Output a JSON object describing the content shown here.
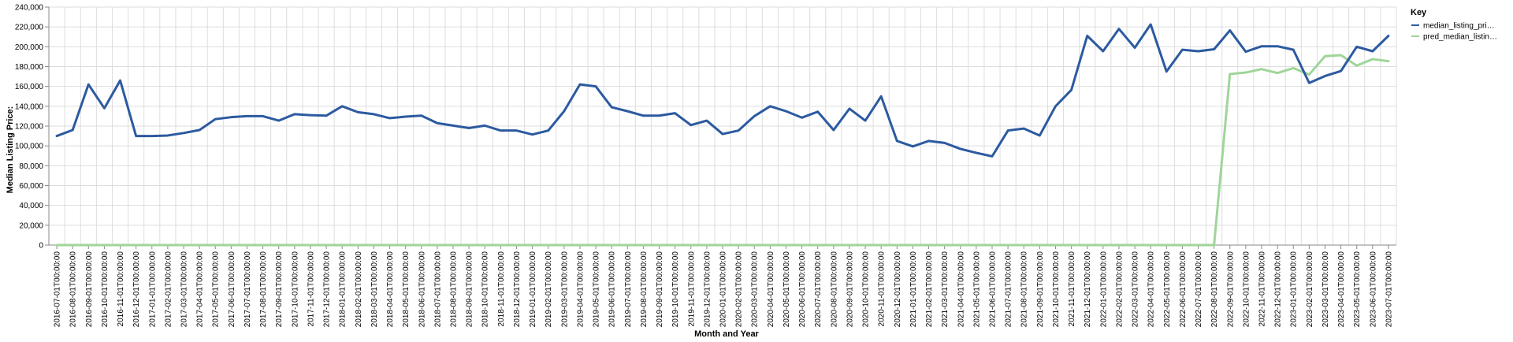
{
  "chart_data": {
    "type": "line",
    "xlabel": "Month and Year",
    "ylabel": "Median Listing Price:",
    "ylim": [
      0,
      240000
    ],
    "yticks": [
      "0",
      "20,000",
      "40,000",
      "60,000",
      "80,000",
      "100,000",
      "120,000",
      "140,000",
      "160,000",
      "180,000",
      "200,000",
      "220,000",
      "240,000"
    ],
    "grid": true,
    "legend": {
      "title": "Key",
      "placement": "right",
      "entries": [
        "median_listing_pri…",
        "pred_median_listin…"
      ]
    },
    "x": [
      "2016-07-01T00:00:00",
      "2016-08-01T00:00:00",
      "2016-09-01T00:00:00",
      "2016-10-01T00:00:00",
      "2016-11-01T00:00:00",
      "2016-12-01T00:00:00",
      "2017-01-01T00:00:00",
      "2017-02-01T00:00:00",
      "2017-03-01T00:00:00",
      "2017-04-01T00:00:00",
      "2017-05-01T00:00:00",
      "2017-06-01T00:00:00",
      "2017-07-01T00:00:00",
      "2017-08-01T00:00:00",
      "2017-09-01T00:00:00",
      "2017-10-01T00:00:00",
      "2017-11-01T00:00:00",
      "2017-12-01T00:00:00",
      "2018-01-01T00:00:00",
      "2018-02-01T00:00:00",
      "2018-03-01T00:00:00",
      "2018-04-01T00:00:00",
      "2018-05-01T00:00:00",
      "2018-06-01T00:00:00",
      "2018-07-01T00:00:00",
      "2018-08-01T00:00:00",
      "2018-09-01T00:00:00",
      "2018-10-01T00:00:00",
      "2018-11-01T00:00:00",
      "2018-12-01T00:00:00",
      "2019-01-01T00:00:00",
      "2019-02-01T00:00:00",
      "2019-03-01T00:00:00",
      "2019-04-01T00:00:00",
      "2019-05-01T00:00:00",
      "2019-06-01T00:00:00",
      "2019-07-01T00:00:00",
      "2019-08-01T00:00:00",
      "2019-09-01T00:00:00",
      "2019-10-01T00:00:00",
      "2019-11-01T00:00:00",
      "2019-12-01T00:00:00",
      "2020-01-01T00:00:00",
      "2020-02-01T00:00:00",
      "2020-03-01T00:00:00",
      "2020-04-01T00:00:00",
      "2020-05-01T00:00:00",
      "2020-06-01T00:00:00",
      "2020-07-01T00:00:00",
      "2020-08-01T00:00:00",
      "2020-09-01T00:00:00",
      "2020-10-01T00:00:00",
      "2020-11-01T00:00:00",
      "2020-12-01T00:00:00",
      "2021-01-01T00:00:00",
      "2021-02-01T00:00:00",
      "2021-03-01T00:00:00",
      "2021-04-01T00:00:00",
      "2021-05-01T00:00:00",
      "2021-06-01T00:00:00",
      "2021-07-01T00:00:00",
      "2021-08-01T00:00:00",
      "2021-09-01T00:00:00",
      "2021-10-01T00:00:00",
      "2021-11-01T00:00:00",
      "2021-12-01T00:00:00",
      "2022-01-01T00:00:00",
      "2022-02-01T00:00:00",
      "2022-03-01T00:00:00",
      "2022-04-01T00:00:00",
      "2022-05-01T00:00:00",
      "2022-06-01T00:00:00",
      "2022-07-01T00:00:00",
      "2022-08-01T00:00:00",
      "2022-09-01T00:00:00",
      "2022-10-01T00:00:00",
      "2022-11-01T00:00:00",
      "2022-12-01T00:00:00",
      "2023-01-01T00:00:00",
      "2023-02-01T00:00:00",
      "2023-03-01T00:00:00",
      "2023-04-01T00:00:00",
      "2023-05-01T00:00:00",
      "2023-06-01T00:00:00",
      "2023-07-01T00:00:00"
    ],
    "series": [
      {
        "name": "median_listing_pri…",
        "color": "#2c5aa0",
        "values": [
          110000,
          116000,
          162000,
          138000,
          166000,
          110000,
          110000,
          110500,
          113000,
          116000,
          127000,
          129000,
          130000,
          130000,
          125500,
          132000,
          131000,
          130500,
          140000,
          134000,
          132000,
          128000,
          129500,
          130500,
          123000,
          120500,
          118000,
          120500,
          115500,
          115500,
          111500,
          115500,
          135000,
          162000,
          160000,
          139000,
          135000,
          130500,
          130500,
          133000,
          121000,
          125500,
          112000,
          115500,
          130000,
          140000,
          135000,
          128500,
          134500,
          116000,
          137500,
          125500,
          150000,
          105000,
          99500,
          105000,
          103000,
          97000,
          93000,
          89500,
          115500,
          117500,
          110500,
          140000,
          156500,
          211000,
          195500,
          218000,
          199000,
          222500,
          175000,
          197000,
          195500,
          197500,
          216500,
          195000,
          200500,
          200500,
          197000,
          163500,
          170500,
          175500,
          200000,
          195500,
          211000
        ]
      },
      {
        "name": "pred_median_listin…",
        "color": "#9fd59a",
        "values": [
          0,
          0,
          0,
          0,
          0,
          0,
          0,
          0,
          0,
          0,
          0,
          0,
          0,
          0,
          0,
          0,
          0,
          0,
          0,
          0,
          0,
          0,
          0,
          0,
          0,
          0,
          0,
          0,
          0,
          0,
          0,
          0,
          0,
          0,
          0,
          0,
          0,
          0,
          0,
          0,
          0,
          0,
          0,
          0,
          0,
          0,
          0,
          0,
          0,
          0,
          0,
          0,
          0,
          0,
          0,
          0,
          0,
          0,
          0,
          0,
          0,
          0,
          0,
          0,
          0,
          0,
          0,
          0,
          0,
          0,
          0,
          0,
          0,
          0,
          172500,
          174000,
          177500,
          173500,
          178500,
          172000,
          190500,
          191500,
          181000,
          187500,
          185500
        ]
      }
    ]
  }
}
